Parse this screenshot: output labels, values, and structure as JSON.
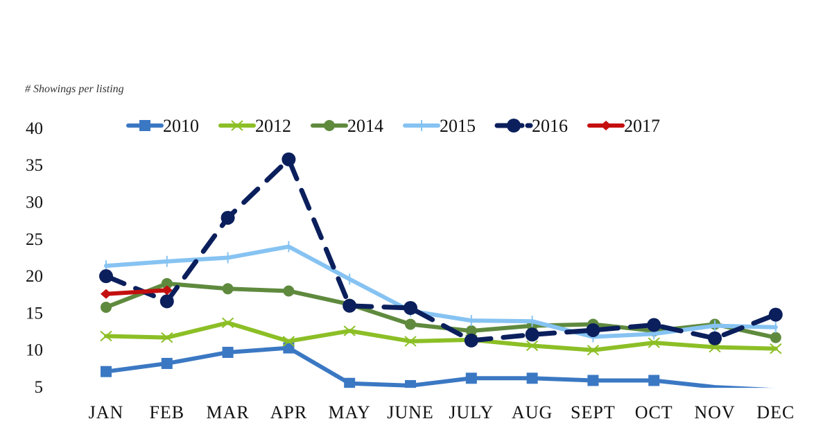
{
  "chart_data": {
    "type": "line",
    "title": "",
    "ylabel": "# Showings per listing",
    "xlabel": "",
    "ylim": [
      4.8,
      40
    ],
    "yticks": [
      5,
      10,
      15,
      20,
      25,
      30,
      35,
      40
    ],
    "grid": false,
    "legend_position": "top",
    "categories": [
      "Jan",
      "Feb",
      "Mar",
      "Apr",
      "May",
      "June",
      "July",
      "Aug",
      "Sept",
      "Oct",
      "Nov",
      "Dec"
    ],
    "series": [
      {
        "name": "2010",
        "color": "#3b78c3",
        "marker": "square",
        "dash": false,
        "values": [
          7.0,
          8.1,
          9.6,
          10.2,
          5.4,
          5.1,
          6.1,
          6.1,
          5.8,
          5.8,
          4.9,
          4.5
        ]
      },
      {
        "name": "2012",
        "color": "#8cbf26",
        "marker": "x",
        "dash": false,
        "values": [
          11.8,
          11.6,
          13.6,
          11.1,
          12.5,
          11.1,
          11.3,
          10.5,
          9.9,
          10.9,
          10.3,
          10.1
        ]
      },
      {
        "name": "2014",
        "color": "#5f8a3e",
        "marker": "circle",
        "dash": false,
        "values": [
          15.7,
          18.9,
          18.2,
          17.9,
          16.1,
          13.4,
          12.5,
          13.2,
          13.4,
          12.5,
          13.4,
          11.6
        ]
      },
      {
        "name": "2015",
        "color": "#86c3f2",
        "marker": "plus",
        "dash": false,
        "values": [
          21.3,
          21.9,
          22.4,
          23.9,
          19.5,
          15.2,
          13.9,
          13.8,
          11.7,
          12.1,
          13.2,
          13.0
        ]
      },
      {
        "name": "2016",
        "color": "#0b1f5c",
        "marker": "circle",
        "dash": true,
        "values": [
          19.9,
          16.5,
          27.8,
          35.7,
          15.9,
          15.6,
          11.2,
          12.0,
          12.6,
          13.3,
          11.5,
          14.7
        ]
      },
      {
        "name": "2017",
        "color": "#c40f0f",
        "marker": "diamond",
        "dash": false,
        "values": [
          17.5,
          18.0,
          null,
          null,
          null,
          null,
          null,
          null,
          null,
          null,
          null,
          null
        ]
      }
    ]
  }
}
